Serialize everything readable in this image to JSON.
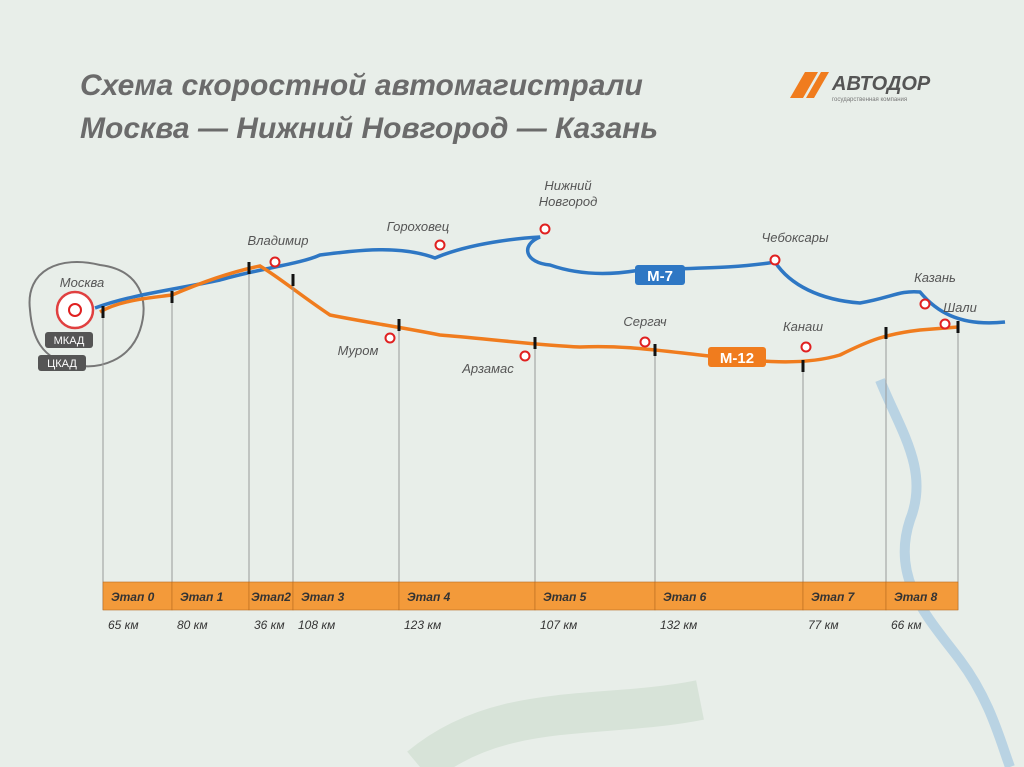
{
  "header": {
    "title_line1": "Схема скоростной автомагистрали",
    "title_line2": "Москва — Нижний Новгород — Казань"
  },
  "logo": {
    "name": "АВТОДОР",
    "tagline": "государственная компания"
  },
  "roads": [
    {
      "label": "М-7"
    },
    {
      "label": "М-12"
    }
  ],
  "rings": [
    "МКАД",
    "ЦКАД"
  ],
  "cities": [
    {
      "name": "Москва"
    },
    {
      "name": "Владимир"
    },
    {
      "name": "Гороховец"
    },
    {
      "name": "Нижний Новгород"
    },
    {
      "name": "Чебоксары"
    },
    {
      "name": "Казань"
    },
    {
      "name": "Шали"
    },
    {
      "name": "Муром"
    },
    {
      "name": "Арзамас"
    },
    {
      "name": "Сергач"
    },
    {
      "name": "Канаш"
    }
  ],
  "stages": [
    {
      "name": "Этап 0",
      "length": "65 км"
    },
    {
      "name": "Этап 1",
      "length": "80 км"
    },
    {
      "name": "Этап2",
      "length": "36 км"
    },
    {
      "name": "Этап 3",
      "length": "108 км"
    },
    {
      "name": "Этап 4",
      "length": "123 км"
    },
    {
      "name": "Этап 5",
      "length": "107 км"
    },
    {
      "name": "Этап 6",
      "length": "132 км"
    },
    {
      "name": "Этап 7",
      "length": "77 км"
    },
    {
      "name": "Этап 8",
      "length": "66 км"
    }
  ]
}
